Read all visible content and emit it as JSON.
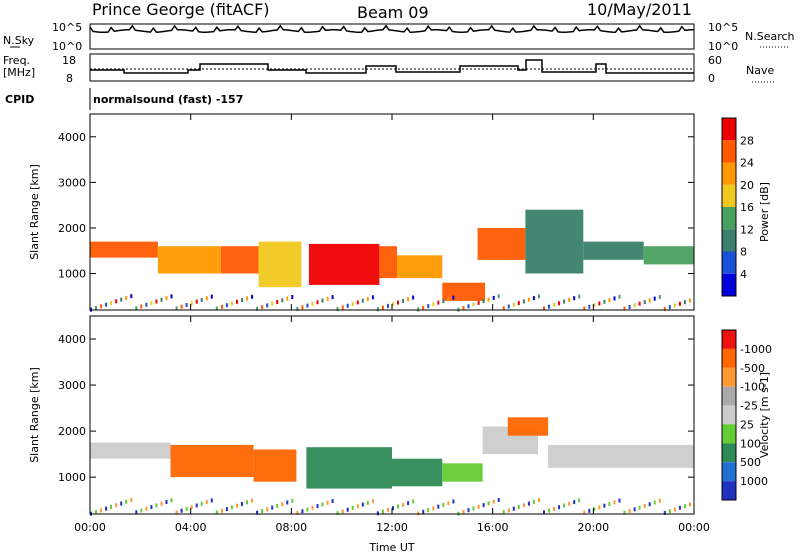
{
  "header": {
    "station": "Prince George (fitACF)",
    "beam": "Beam 09",
    "date": "10/May/2011"
  },
  "top_panels": {
    "nsky_label": "N.Sky",
    "nsearch_label": "N.Search",
    "noise_ticks": [
      "10^5",
      "10^0"
    ],
    "freq_label_line1": "Freq.",
    "freq_label_line2": "[MHz]",
    "freq_ticks": [
      "18",
      "8"
    ],
    "nave_label": "Nave",
    "nave_ticks": [
      "60",
      "0"
    ],
    "cpid_label": "CPID",
    "cpid_text": "normalsound (fast) -157"
  },
  "colors": {
    "power_scale": [
      "#0000dd",
      "#1a4fd8",
      "#3b7f6a",
      "#4aa060",
      "#f0c81e",
      "#ff9900",
      "#ff5a00",
      "#ee0000"
    ],
    "velocity_scale": [
      "#2030c0",
      "#2070d0",
      "#2e8b57",
      "#66cc33",
      "#cccccc",
      "#aaaaaa",
      "#ff9933",
      "#ff6600",
      "#ee1111"
    ],
    "ground_scatter": "#c8c8c8"
  },
  "chart_data": [
    {
      "type": "heatmap",
      "name": "power",
      "ylabel": "Slant Range [km]",
      "yticks": [
        "1000",
        "2000",
        "3000",
        "4000"
      ],
      "ylim": [
        200,
        4500
      ],
      "xlim": [
        0,
        24
      ],
      "colorbar_label": "Power [dB]",
      "colorbar_ticks": [
        "4",
        "8",
        "12",
        "16",
        "20",
        "24",
        "28"
      ],
      "bands": [
        {
          "t0": 0.0,
          "t1": 2.7,
          "r0": 1350,
          "r1": 1700,
          "level": 6
        },
        {
          "t0": 2.7,
          "t1": 5.2,
          "r0": 1000,
          "r1": 1600,
          "level": 5
        },
        {
          "t0": 5.2,
          "t1": 6.7,
          "r0": 1000,
          "r1": 1600,
          "level": 6
        },
        {
          "t0": 6.7,
          "t1": 8.4,
          "r0": 700,
          "r1": 1700,
          "level": 4
        },
        {
          "t0": 8.7,
          "t1": 11.5,
          "r0": 750,
          "r1": 1650,
          "level": 7
        },
        {
          "t0": 11.5,
          "t1": 12.2,
          "r0": 900,
          "r1": 1600,
          "level": 6
        },
        {
          "t0": 12.2,
          "t1": 14.0,
          "r0": 900,
          "r1": 1400,
          "level": 5
        },
        {
          "t0": 14.0,
          "t1": 15.7,
          "r0": 400,
          "r1": 800,
          "level": 6
        },
        {
          "t0": 15.4,
          "t1": 17.3,
          "r0": 1300,
          "r1": 2000,
          "level": 6
        },
        {
          "t0": 17.3,
          "t1": 19.6,
          "r0": 1000,
          "r1": 2400,
          "level": 2
        },
        {
          "t0": 19.6,
          "t1": 22.0,
          "r0": 1300,
          "r1": 1700,
          "level": 2
        },
        {
          "t0": 22.0,
          "t1": 24.0,
          "r0": 1200,
          "r1": 1600,
          "level": 3
        }
      ]
    },
    {
      "type": "heatmap",
      "name": "velocity",
      "xlabel": "Time UT",
      "ylabel": "Slant Range [km]",
      "xticks": [
        "00:00",
        "04:00",
        "08:00",
        "12:00",
        "16:00",
        "20:00",
        "00:00"
      ],
      "yticks": [
        "1000",
        "2000",
        "3000",
        "4000"
      ],
      "ylim": [
        200,
        4500
      ],
      "xlim": [
        0,
        24
      ],
      "colorbar_label": "Velocity [m s-1]",
      "colorbar_ticks": [
        "1000",
        "500",
        "100",
        "25",
        "-25",
        "-100",
        "-500",
        "-1000"
      ],
      "bands": [
        {
          "t0": 0.0,
          "t1": 3.2,
          "r0": 1400,
          "r1": 1750,
          "level": 4
        },
        {
          "t0": 3.2,
          "t1": 6.5,
          "r0": 1000,
          "r1": 1700,
          "level": 7
        },
        {
          "t0": 6.5,
          "t1": 8.2,
          "r0": 900,
          "r1": 1600,
          "level": 7
        },
        {
          "t0": 8.6,
          "t1": 12.0,
          "r0": 750,
          "r1": 1650,
          "level": 2
        },
        {
          "t0": 12.0,
          "t1": 14.0,
          "r0": 800,
          "r1": 1400,
          "level": 2
        },
        {
          "t0": 14.0,
          "t1": 15.6,
          "r0": 900,
          "r1": 1300,
          "level": 3
        },
        {
          "t0": 15.6,
          "t1": 17.8,
          "r0": 1500,
          "r1": 2100,
          "level": 4
        },
        {
          "t0": 16.6,
          "t1": 18.2,
          "r0": 1900,
          "r1": 2300,
          "level": 7
        },
        {
          "t0": 18.2,
          "t1": 24.0,
          "r0": 1200,
          "r1": 1700,
          "level": 4
        }
      ]
    }
  ]
}
